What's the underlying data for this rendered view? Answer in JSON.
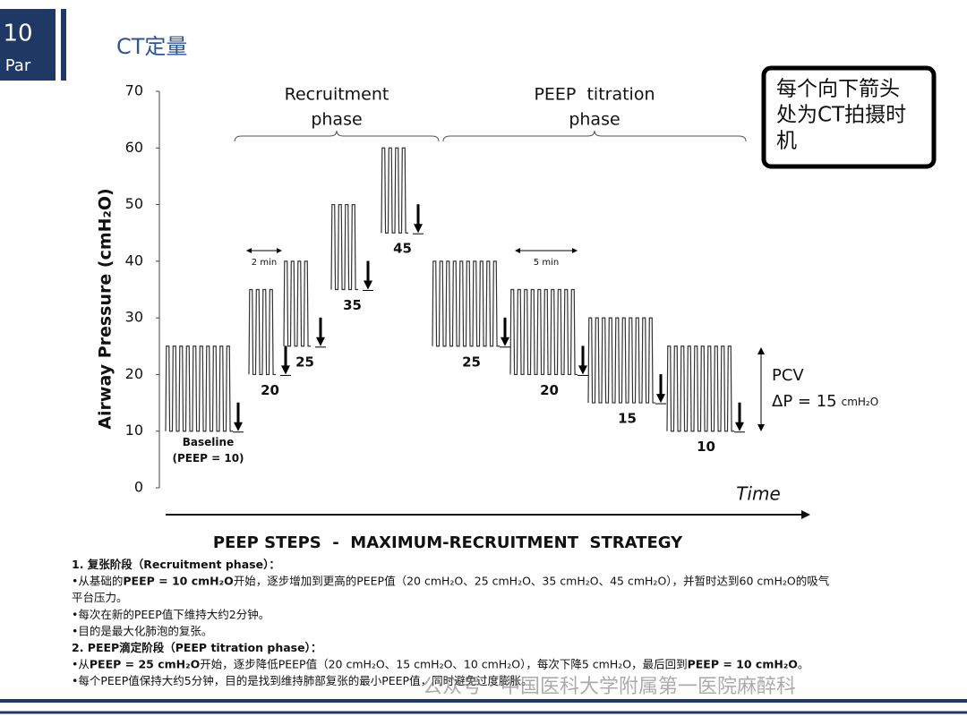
{
  "slide": {
    "page_number": "10",
    "page_label": "Par",
    "title": "CT定量",
    "callout": [
      "每个向下箭头",
      "处为CT拍摄时",
      "机"
    ],
    "watermark": "公众号 · 中国医科大学附属第一医院麻醉科"
  },
  "chart_data": {
    "type": "waveform",
    "title": "PEEP STEPS  -  MAXIMUM-RECRUITMENT  STRATEGY",
    "ylabel": "Airway Pressure (cmH₂O)",
    "xlabel": "Time",
    "ylim": [
      0,
      70
    ],
    "yticks": [
      0,
      10,
      20,
      30,
      40,
      50,
      60,
      70
    ],
    "phases": [
      {
        "label": [
          "Recruitment",
          "phase"
        ]
      },
      {
        "label": [
          "PEEP  titration",
          "phase"
        ]
      }
    ],
    "durations": [
      "2 min",
      "5 min"
    ],
    "pcv": {
      "label": "PCV",
      "delta": "ΔP = 15",
      "unit": "cmH₂O"
    },
    "color": "#333333",
    "steps": [
      {
        "peep": 10,
        "peak": 25,
        "label": [
          "Baseline",
          "(PEEP = 10)"
        ]
      },
      {
        "peep": 20,
        "peak": 35
      },
      {
        "peep": 25,
        "peak": 40
      },
      {
        "peep": 35,
        "peak": 50
      },
      {
        "peep": 45,
        "peak": 60
      },
      {
        "peep": 25,
        "peak": 40
      },
      {
        "peep": 20,
        "peak": 35
      },
      {
        "peep": 15,
        "peak": 30
      },
      {
        "peep": 10,
        "peak": 25
      }
    ]
  },
  "notes": [
    [
      {
        "text": "1. 复张阶段（Recruitment phase）：",
        "bold": true
      }
    ],
    [
      {
        "text": "•从基础的"
      },
      {
        "text": "PEEP = 10 cmH₂O",
        "bold": true
      },
      {
        "text": "开始，逐步增加到更高的PEEP值（20 cmH₂O、25 cmH₂O、35 cmH₂O、45 cmH₂O），并暂时达到60 cmH₂O的吸气"
      }
    ],
    [
      {
        "text": "平台压力。"
      }
    ],
    [
      {
        "text": "•每次在新的PEEP值下维持大约2分钟。"
      }
    ],
    [
      {
        "text": "•目的是最大化肺泡的复张。"
      }
    ],
    [
      {
        "text": "2. PEEP滴定阶段（PEEP titration phase）：",
        "bold": true
      }
    ],
    [
      {
        "text": "•从"
      },
      {
        "text": "PEEP = 25 cmH₂O",
        "bold": true
      },
      {
        "text": "开始，逐步降低PEEP值（20 cmH₂O、15 cmH₂O、10 cmH₂O），每次下降5 cmH₂O，最后回到"
      },
      {
        "text": "PEEP = 10 cmH₂O",
        "bold": true
      },
      {
        "text": "。"
      }
    ],
    [
      {
        "text": "•每个PEEP值保持大约5分钟，目的是找到维持肺部复张的最小PEEP值，同时避免过度膨胀。"
      }
    ]
  ]
}
